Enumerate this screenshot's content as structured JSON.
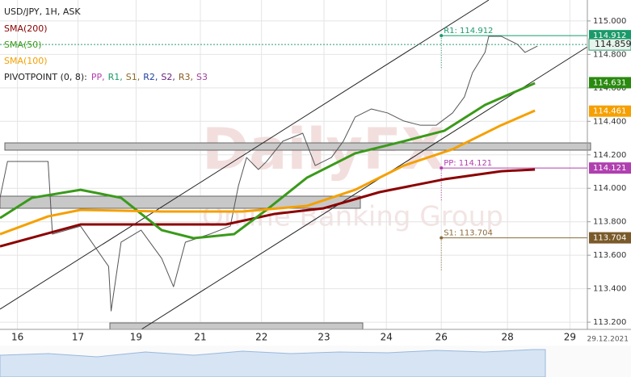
{
  "chart_data": {
    "type": "line",
    "title": "USD/JPY, 1H, ASK",
    "watermark": [
      "DailyFX",
      "Online Banking Group"
    ],
    "pivot_title": "PIVOTPOINT (0, 8):",
    "pivot_items": [
      {
        "label": "PP,",
        "color": "#b040b0"
      },
      {
        "label": "R1,",
        "color": "#1a9a6a"
      },
      {
        "label": "S1,",
        "color": "#8a6a20"
      },
      {
        "label": "R2,",
        "color": "#2040a0"
      },
      {
        "label": "S2,",
        "color": "#6a2080"
      },
      {
        "label": "R3,",
        "color": "#8a5a20"
      },
      {
        "label": "S3",
        "color": "#a040a0"
      }
    ],
    "xlim": [
      -0.28,
      9.13
    ],
    "xticks": [
      {
        "value": 0,
        "label": "16"
      },
      {
        "value": 0.97,
        "label": "17"
      },
      {
        "value": 1.9,
        "label": "19"
      },
      {
        "value": 2.93,
        "label": "21"
      },
      {
        "value": 3.91,
        "label": "22"
      },
      {
        "value": 4.91,
        "label": "23"
      },
      {
        "value": 5.91,
        "label": "24"
      },
      {
        "value": 6.79,
        "label": "26"
      },
      {
        "value": 7.85,
        "label": "28"
      },
      {
        "value": 8.85,
        "label": "29"
      }
    ],
    "date_label": "29.12.2021",
    "ylim": [
      113.157,
      115.125
    ],
    "yticks": [
      {
        "value": 113.2,
        "label": "113.200"
      },
      {
        "value": 113.4,
        "label": "113.400"
      },
      {
        "value": 113.6,
        "label": "113.600"
      },
      {
        "value": 113.8,
        "label": "113.800"
      },
      {
        "value": 114.0,
        "label": "114.000"
      },
      {
        "value": 114.2,
        "label": "114.200"
      },
      {
        "value": 114.4,
        "label": "114.400"
      },
      {
        "value": 114.6,
        "label": "114.600"
      },
      {
        "value": 114.8,
        "label": "114.800"
      },
      {
        "value": 115.0,
        "label": "115.000"
      }
    ],
    "series": [
      {
        "color": "#555555",
        "x": [
          -0.28,
          -0.16,
          -0.03,
          0.49,
          0.56,
          1.01,
          1.46,
          1.5,
          1.66,
          1.98,
          2.31,
          2.5,
          2.69,
          3.08,
          3.41,
          3.54,
          3.67,
          3.86,
          3.99,
          4.25,
          4.57,
          4.77,
          5.03,
          5.22,
          5.41,
          5.67,
          5.93,
          6.19,
          6.45,
          6.71,
          6.97,
          7.16,
          7.29,
          7.49,
          7.55,
          7.75,
          8.01,
          8.13,
          8.33
        ],
        "values": [
          113.943,
          114.16,
          114.16,
          114.16,
          113.726,
          113.774,
          113.533,
          113.267,
          113.678,
          113.75,
          113.581,
          113.412,
          113.678,
          113.726,
          113.774,
          114.015,
          114.184,
          114.112,
          114.16,
          114.281,
          114.329,
          114.136,
          114.184,
          114.281,
          114.426,
          114.474,
          114.45,
          114.402,
          114.377,
          114.377,
          114.45,
          114.546,
          114.691,
          114.812,
          114.908,
          114.908,
          114.86,
          114.812,
          114.85
        ]
      },
      {
        "name": "SMA(200)",
        "color": "#8b0000",
        "x": [
          -0.28,
          1.01,
          2.31,
          3.34,
          4.12,
          4.9,
          5.8,
          6.84,
          7.75,
          8.29
        ],
        "values": [
          113.653,
          113.784,
          113.784,
          113.784,
          113.847,
          113.88,
          113.977,
          114.054,
          114.102,
          114.112
        ]
      },
      {
        "name": "SMA(50)",
        "color": "#3a9a1a",
        "x": [
          -0.28,
          0.23,
          1.01,
          1.66,
          2.31,
          2.82,
          3.47,
          3.99,
          4.64,
          5.41,
          6.19,
          6.84,
          7.49,
          8.29
        ],
        "values": [
          113.822,
          113.943,
          113.991,
          113.943,
          113.75,
          113.702,
          113.726,
          113.871,
          114.064,
          114.209,
          114.281,
          114.344,
          114.498,
          114.628
        ]
      },
      {
        "name": "SMA(100)",
        "color": "#f5a000",
        "x": [
          -0.28,
          0.49,
          1.01,
          2.31,
          3.6,
          4.64,
          5.41,
          6.19,
          6.97,
          7.75,
          8.29
        ],
        "values": [
          113.726,
          113.832,
          113.871,
          113.861,
          113.861,
          113.895,
          113.991,
          114.136,
          114.233,
          114.377,
          114.464
        ]
      }
    ],
    "levels": [
      {
        "label": "R1: 114.912",
        "value": 114.912,
        "color": "#1a9a6a"
      },
      {
        "label": "PP: 114.121",
        "value": 114.121,
        "color": "#b040b0"
      },
      {
        "label": "S1: 113.704",
        "value": 113.704,
        "color": "#8a6a3a"
      }
    ],
    "level_start": 6.79,
    "current_price": 114.859,
    "price_boxes": [
      {
        "value": 114.912,
        "color": "#1a9a6a"
      },
      {
        "value": 114.631,
        "color": "#2a8a10"
      },
      {
        "value": 114.461,
        "color": "#f5a000"
      },
      {
        "value": 114.121,
        "color": "#b040b0"
      },
      {
        "value": 113.704,
        "color": "#7a5a2a"
      }
    ]
  }
}
